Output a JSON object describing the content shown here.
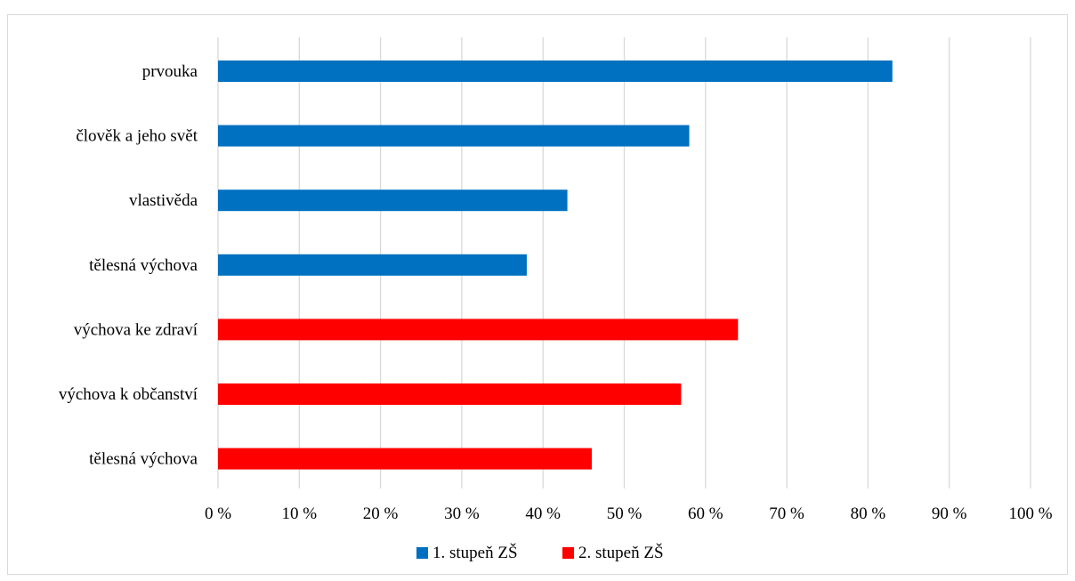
{
  "chart_data": {
    "type": "bar",
    "orientation": "horizontal",
    "title": "",
    "xlabel": "",
    "ylabel": "",
    "xlim": [
      0,
      100
    ],
    "grid": true,
    "legend_position": "bottom",
    "x_ticks": [
      "0 %",
      "10 %",
      "20 %",
      "30 %",
      "40 %",
      "50 %",
      "60 %",
      "70 %",
      "80 %",
      "90 %",
      "100 %"
    ],
    "categories": [
      "prvouka",
      "člověk a jeho svět",
      "vlastivěda",
      "tělesná výchova",
      "výchova ke zdraví",
      "výchova k občanství",
      "tělesná výchova"
    ],
    "values": [
      83,
      58,
      43,
      38,
      64,
      57,
      46
    ],
    "bar_series": [
      0,
      0,
      0,
      0,
      1,
      1,
      1
    ],
    "series": [
      {
        "name": "1. stupeň ZŠ",
        "color": "#0070c0"
      },
      {
        "name": "2. stupeň ZŠ",
        "color": "#ff0000"
      }
    ]
  }
}
